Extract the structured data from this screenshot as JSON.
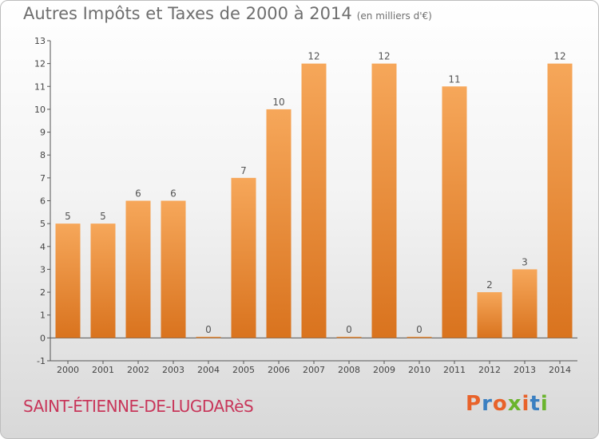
{
  "header": {
    "title": "Autres Impôts et Taxes de 2000 à 2014",
    "unit": "(en milliers d'€)"
  },
  "footer": {
    "commune": "SAINT-ÉTIENNE-DE-LUGDARèS",
    "logo": "Proxiti"
  },
  "colors": {
    "bar_top": "#f6a75a",
    "bar_bottom": "#d9731e",
    "logo": [
      "#e8622a",
      "#3a7fc1",
      "#e8622a",
      "#6ab42d",
      "#e8622a",
      "#3a7fc1",
      "#6ab42d"
    ]
  },
  "chart_data": {
    "type": "bar",
    "title": "Autres Impôts et Taxes de 2000 à 2014",
    "subtitle": "(en milliers d'€)",
    "categories": [
      "2000",
      "2001",
      "2002",
      "2003",
      "2004",
      "2005",
      "2006",
      "2007",
      "2008",
      "2009",
      "2010",
      "2011",
      "2012",
      "2013",
      "2014"
    ],
    "values": [
      5,
      5,
      6,
      6,
      0,
      7,
      10,
      12,
      0,
      12,
      0,
      11,
      2,
      3,
      12
    ],
    "ylim": [
      -1,
      13
    ],
    "yticks": [
      -1,
      0,
      1,
      2,
      3,
      4,
      5,
      6,
      7,
      8,
      9,
      10,
      11,
      12,
      13
    ],
    "grid": false,
    "data_labels": true
  }
}
